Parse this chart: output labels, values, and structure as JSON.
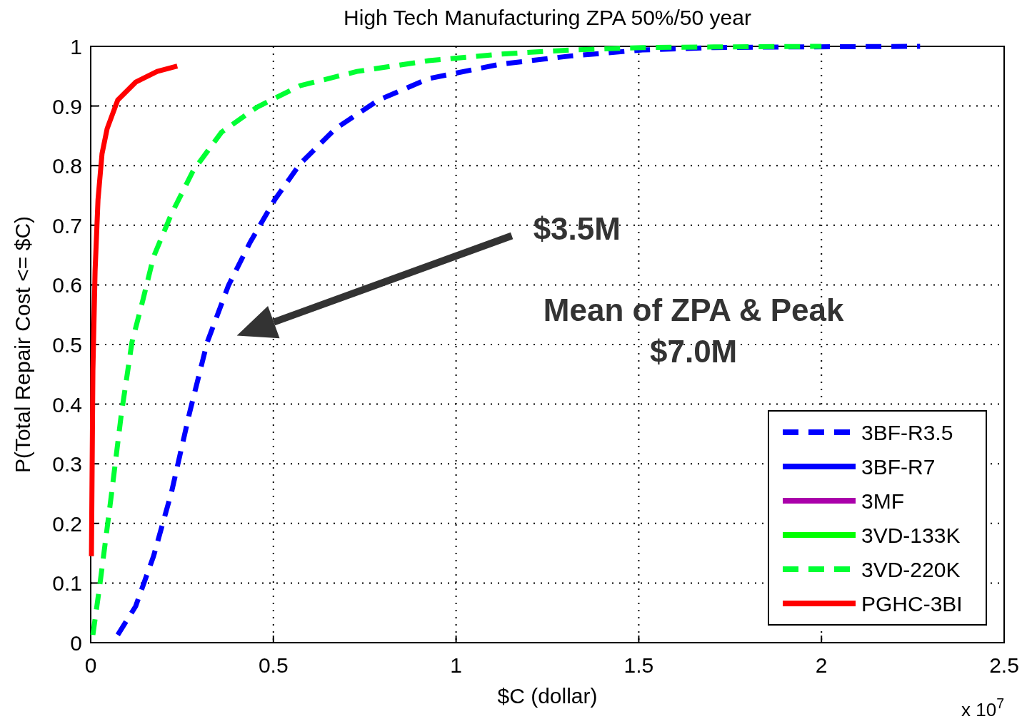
{
  "chart_data": {
    "type": "line",
    "title": "High Tech Manufacturing ZPA 50%/50 year",
    "xlabel": "$C (dollar)",
    "ylabel": "P(Total Repair Cost <= $C)",
    "xlim": [
      0,
      2.5
    ],
    "xticks": [
      0,
      0.5,
      1,
      1.5,
      2,
      2.5
    ],
    "ylim": [
      0,
      1
    ],
    "yticks": [
      0,
      0.1,
      0.2,
      0.3,
      0.4,
      0.5,
      0.6,
      0.7,
      0.8,
      0.9,
      1
    ],
    "grid": true,
    "legend": "bottom right",
    "annotations": [
      "$3.5M",
      "Mean of ZPA & Peak\n$7.0M",
      "x 10$^{7}$"
    ],
    "series": [
      {
        "name": "3BF-R3.5",
        "color": "#0000ff",
        "line_style": "dashed",
        "x": [
          0.074,
          0.123,
          0.172,
          0.221,
          0.27,
          0.319,
          0.377,
          0.436,
          0.504,
          0.573,
          0.67,
          0.788,
          0.925,
          1.12,
          1.315,
          1.51,
          1.706,
          1.9,
          2.27
        ],
        "values": [
          0.013,
          0.061,
          0.145,
          0.252,
          0.384,
          0.504,
          0.599,
          0.671,
          0.743,
          0.803,
          0.862,
          0.91,
          0.946,
          0.97,
          0.984,
          0.994,
          0.998,
          0.999,
          1.0
        ]
      },
      {
        "name": "3BF-R7",
        "color": "#0000ff",
        "line_style": "solid"
      },
      {
        "name": "3MF",
        "color": "#aa00aa",
        "line_style": "solid"
      },
      {
        "name": "3VD-133K",
        "color": "#00ff00",
        "line_style": "solid"
      },
      {
        "name": "3VD-220K",
        "color": "#00ff33",
        "line_style": "dashed",
        "x": [
          0.006,
          0.025,
          0.055,
          0.084,
          0.113,
          0.143,
          0.172,
          0.221,
          0.28,
          0.358,
          0.455,
          0.573,
          0.729,
          0.925,
          1.12,
          1.315,
          1.51,
          1.706,
          2.0
        ],
        "values": [
          0.013,
          0.097,
          0.24,
          0.384,
          0.504,
          0.575,
          0.647,
          0.719,
          0.791,
          0.856,
          0.898,
          0.934,
          0.958,
          0.976,
          0.987,
          0.994,
          0.998,
          0.999,
          1.0
        ]
      },
      {
        "name": "PGHC-3BI",
        "color": "#ff0000",
        "line_style": "solid",
        "x": [
          0.002,
          0.006,
          0.012,
          0.02,
          0.031,
          0.045,
          0.074,
          0.123,
          0.182,
          0.237
        ],
        "values": [
          0.145,
          0.456,
          0.623,
          0.743,
          0.82,
          0.862,
          0.91,
          0.94,
          0.958,
          0.967
        ]
      }
    ]
  }
}
